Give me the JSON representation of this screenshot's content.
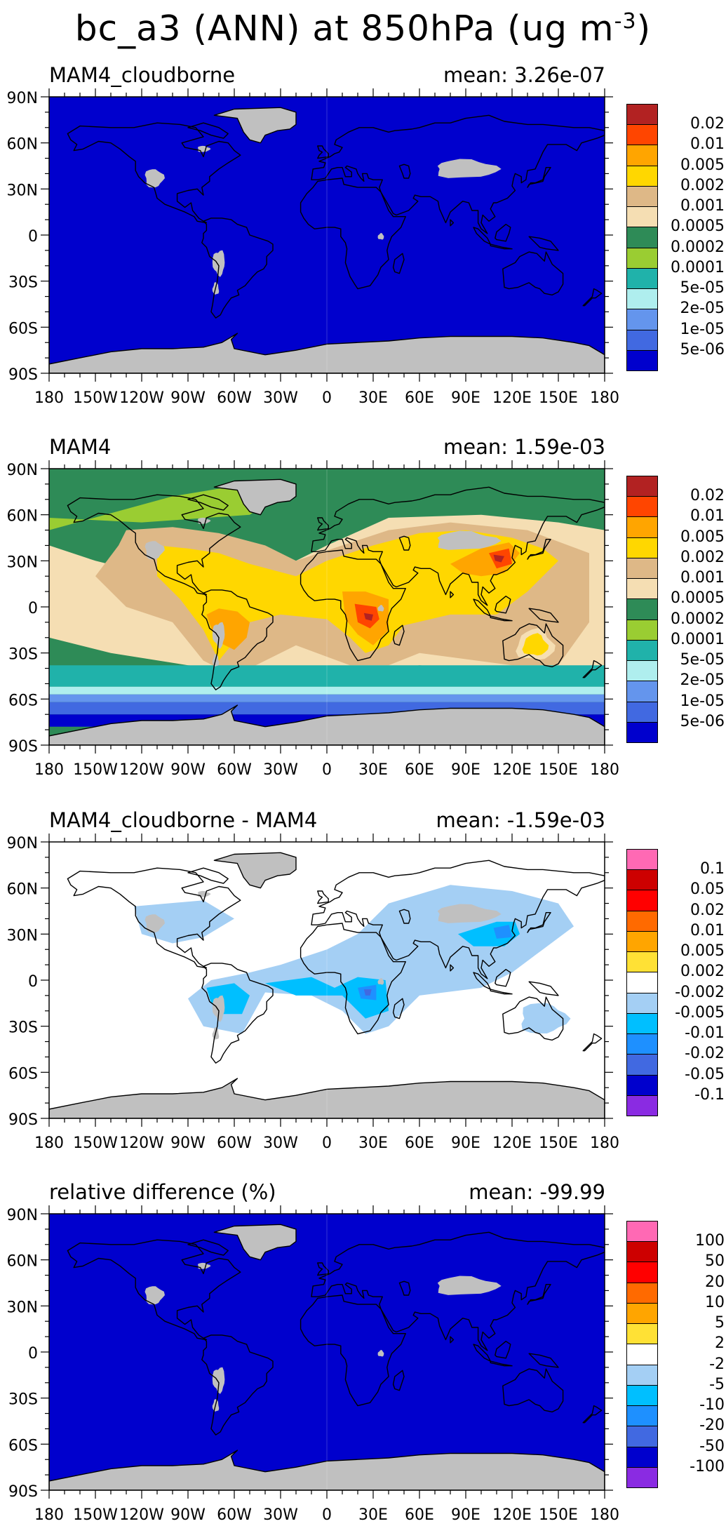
{
  "title": "bc_a3 (ANN) at 850hPa (ug m",
  "title_exponent": "-3",
  "title_close": ")",
  "lat_labels": [
    "90N",
    "60N",
    "30N",
    "0",
    "30S",
    "60S",
    "90S"
  ],
  "lon_labels": [
    "180",
    "150W",
    "120W",
    "90W",
    "60W",
    "30W",
    "0",
    "30E",
    "60E",
    "90E",
    "120E",
    "150E",
    "180"
  ],
  "panels": [
    {
      "title": "MAM4_cloudborne",
      "mean": "mean: 3.26e-07",
      "background": "#0000cd",
      "colorbar": {
        "labels": [
          "0.02",
          "0.01",
          "0.005",
          "0.002",
          "0.001",
          "0.0005",
          "0.0002",
          "0.0001",
          "5e-05",
          "2e-05",
          "1e-05",
          "5e-06"
        ],
        "colors": [
          "#b22222",
          "#ff4500",
          "#ffa500",
          "#ffd700",
          "#deb887",
          "#f5deb3",
          "#2e8b57",
          "#9acd32",
          "#20b2aa",
          "#afeeee",
          "#6495ed",
          "#4169e1",
          "#0000cd"
        ]
      }
    },
    {
      "title": "MAM4",
      "mean": "mean: 1.59e-03",
      "background": "#2e8b57",
      "colorbar": {
        "labels": [
          "0.02",
          "0.01",
          "0.005",
          "0.002",
          "0.001",
          "0.0005",
          "0.0002",
          "0.0001",
          "5e-05",
          "2e-05",
          "1e-05",
          "5e-06"
        ],
        "colors": [
          "#b22222",
          "#ff4500",
          "#ffa500",
          "#ffd700",
          "#deb887",
          "#f5deb3",
          "#2e8b57",
          "#9acd32",
          "#20b2aa",
          "#afeeee",
          "#6495ed",
          "#4169e1",
          "#0000cd"
        ]
      }
    },
    {
      "title": "MAM4_cloudborne - MAM4",
      "mean": "mean: -1.59e-03",
      "background": "#ffffff",
      "colorbar": {
        "labels": [
          "0.1",
          "0.05",
          "0.02",
          "0.01",
          "0.005",
          "0.002",
          "-0.002",
          "-0.005",
          "-0.01",
          "-0.02",
          "-0.05",
          "-0.1"
        ],
        "colors": [
          "#ff69b4",
          "#cd0000",
          "#ff0000",
          "#ff6a00",
          "#ffa500",
          "#ffe135",
          "#ffffff",
          "#a4cff4",
          "#00bfff",
          "#1e90ff",
          "#4169e1",
          "#0000cd",
          "#8a2be2"
        ]
      }
    },
    {
      "title": "relative difference (%)",
      "mean": "mean: -99.99",
      "background": "#0000cd",
      "colorbar": {
        "labels": [
          "100",
          "50",
          "20",
          "10",
          "5",
          "2",
          "-2",
          "-5",
          "-10",
          "-20",
          "-50",
          "-100"
        ],
        "colors": [
          "#ff69b4",
          "#cd0000",
          "#ff0000",
          "#ff6a00",
          "#ffa500",
          "#ffe135",
          "#ffffff",
          "#a4cff4",
          "#00bfff",
          "#1e90ff",
          "#4169e1",
          "#0000cd",
          "#8a2be2"
        ]
      }
    }
  ]
}
